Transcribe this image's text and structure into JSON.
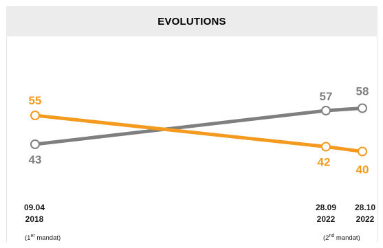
{
  "title": "EVOLUTIONS",
  "colors": {
    "grey_series": "#7f7f7f",
    "orange_series": "#f39a1f",
    "header_bg": "#ececec",
    "marker_fill": "#ffffff"
  },
  "chart_data": {
    "type": "line",
    "x": [
      "09.04 2018",
      "28.09 2022",
      "28.10 2022"
    ],
    "x_labels": [
      {
        "line1": "09.04",
        "line2": "2018"
      },
      {
        "line1": "28.09",
        "line2": "2022"
      },
      {
        "line1": "28.10",
        "line2": "2022"
      }
    ],
    "series": [
      {
        "color": "#7f7f7f",
        "values": [
          43,
          57,
          58
        ],
        "labels": [
          "43",
          "57",
          "58"
        ]
      },
      {
        "color": "#f39a1f",
        "values": [
          55,
          42,
          40
        ],
        "labels": [
          "55",
          "42",
          "40"
        ]
      }
    ],
    "ylim": [
      35,
      65
    ],
    "grid": false,
    "legend": "none"
  },
  "notes": {
    "first": {
      "prefix": "(1",
      "sup": "er",
      "suffix": " mandat)"
    },
    "second": {
      "prefix": "(2",
      "sup": "nd",
      "suffix": " mandat)"
    }
  }
}
